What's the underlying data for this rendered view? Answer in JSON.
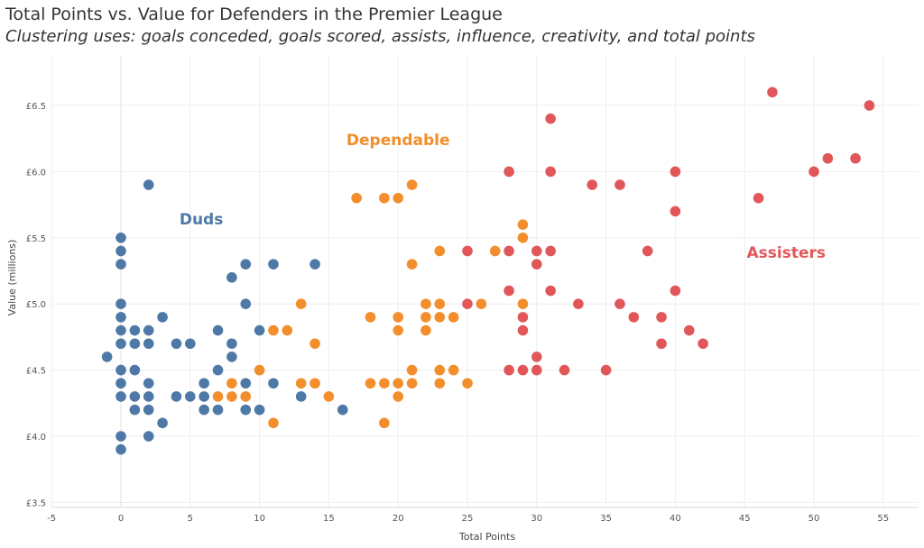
{
  "title": "Total Points vs. Value for Defenders in the Premier League",
  "subtitle": "Clustering uses: goals conceded, goals scored, assists, influence, creativity, and total points",
  "chart_data": {
    "type": "scatter",
    "xlabel": "Total Points",
    "ylabel": "Value (millions)",
    "xlim": [
      -5,
      57
    ],
    "ylim": [
      3.45,
      6.9
    ],
    "x_ticks": [
      -5,
      0,
      5,
      10,
      15,
      20,
      25,
      30,
      35,
      40,
      45,
      50,
      55
    ],
    "y_ticks": [
      3.5,
      4.0,
      4.5,
      5.0,
      5.5,
      6.0,
      6.5
    ],
    "y_tick_labels": [
      "£3.5",
      "£4.0",
      "£4.5",
      "£5.0",
      "£5.5",
      "£6.0",
      "£6.5"
    ],
    "grid": true,
    "series": [
      {
        "name": "Duds",
        "color": "#4e79a7",
        "label_at": [
          5.8,
          5.6
        ],
        "points": [
          [
            -1,
            4.6
          ],
          [
            0,
            3.9
          ],
          [
            0,
            4.0
          ],
          [
            0,
            4.3
          ],
          [
            0,
            4.4
          ],
          [
            0,
            4.5
          ],
          [
            0,
            4.7
          ],
          [
            0,
            4.8
          ],
          [
            0,
            4.9
          ],
          [
            0,
            5.0
          ],
          [
            0,
            5.3
          ],
          [
            0,
            5.4
          ],
          [
            0,
            5.5
          ],
          [
            1,
            4.2
          ],
          [
            1,
            4.3
          ],
          [
            1,
            4.5
          ],
          [
            1,
            4.7
          ],
          [
            1,
            4.8
          ],
          [
            2,
            4.0
          ],
          [
            2,
            4.2
          ],
          [
            2,
            4.3
          ],
          [
            2,
            4.4
          ],
          [
            2,
            4.7
          ],
          [
            2,
            4.8
          ],
          [
            2,
            5.9
          ],
          [
            3,
            4.1
          ],
          [
            3,
            4.9
          ],
          [
            4,
            4.3
          ],
          [
            4,
            4.7
          ],
          [
            5,
            4.3
          ],
          [
            5,
            4.7
          ],
          [
            6,
            4.2
          ],
          [
            6,
            4.3
          ],
          [
            6,
            4.4
          ],
          [
            7,
            4.2
          ],
          [
            7,
            4.5
          ],
          [
            7,
            4.8
          ],
          [
            8,
            4.6
          ],
          [
            8,
            4.7
          ],
          [
            8,
            5.2
          ],
          [
            9,
            4.2
          ],
          [
            9,
            4.4
          ],
          [
            9,
            5.0
          ],
          [
            9,
            5.3
          ],
          [
            10,
            4.2
          ],
          [
            10,
            4.8
          ],
          [
            11,
            4.4
          ],
          [
            11,
            5.3
          ],
          [
            13,
            4.3
          ],
          [
            14,
            5.3
          ],
          [
            16,
            4.2
          ]
        ]
      },
      {
        "name": "Dependable",
        "color": "#f28e2b",
        "label_at": [
          20,
          6.2
        ],
        "points": [
          [
            7,
            4.3
          ],
          [
            8,
            4.3
          ],
          [
            8,
            4.4
          ],
          [
            9,
            4.3
          ],
          [
            10,
            4.5
          ],
          [
            11,
            4.1
          ],
          [
            11,
            4.8
          ],
          [
            12,
            4.8
          ],
          [
            13,
            4.4
          ],
          [
            13,
            5.0
          ],
          [
            14,
            4.4
          ],
          [
            14,
            4.7
          ],
          [
            15,
            4.3
          ],
          [
            17,
            5.8
          ],
          [
            18,
            4.4
          ],
          [
            18,
            4.9
          ],
          [
            19,
            4.1
          ],
          [
            19,
            4.4
          ],
          [
            19,
            5.8
          ],
          [
            20,
            4.3
          ],
          [
            20,
            4.4
          ],
          [
            20,
            4.8
          ],
          [
            20,
            4.9
          ],
          [
            20,
            5.8
          ],
          [
            21,
            4.4
          ],
          [
            21,
            4.5
          ],
          [
            21,
            5.3
          ],
          [
            21,
            5.9
          ],
          [
            22,
            4.8
          ],
          [
            22,
            4.9
          ],
          [
            22,
            5.0
          ],
          [
            23,
            4.4
          ],
          [
            23,
            4.5
          ],
          [
            23,
            4.9
          ],
          [
            23,
            5.0
          ],
          [
            23,
            5.4
          ],
          [
            24,
            4.5
          ],
          [
            24,
            4.9
          ],
          [
            25,
            4.4
          ],
          [
            26,
            5.0
          ],
          [
            27,
            5.4
          ],
          [
            29,
            5.0
          ],
          [
            29,
            5.5
          ],
          [
            29,
            5.6
          ]
        ]
      },
      {
        "name": "Assisters",
        "color": "#e15759",
        "label_at": [
          48,
          5.35
        ],
        "points": [
          [
            25,
            5.0
          ],
          [
            25,
            5.4
          ],
          [
            28,
            4.5
          ],
          [
            28,
            5.1
          ],
          [
            28,
            5.4
          ],
          [
            28,
            6.0
          ],
          [
            29,
            4.5
          ],
          [
            29,
            4.8
          ],
          [
            29,
            4.9
          ],
          [
            30,
            4.5
          ],
          [
            30,
            4.6
          ],
          [
            30,
            5.3
          ],
          [
            30,
            5.4
          ],
          [
            31,
            5.1
          ],
          [
            31,
            5.4
          ],
          [
            31,
            6.0
          ],
          [
            31,
            6.4
          ],
          [
            32,
            4.5
          ],
          [
            33,
            5.0
          ],
          [
            34,
            5.9
          ],
          [
            35,
            4.5
          ],
          [
            36,
            5.0
          ],
          [
            36,
            5.9
          ],
          [
            37,
            4.9
          ],
          [
            38,
            5.4
          ],
          [
            39,
            4.7
          ],
          [
            39,
            4.9
          ],
          [
            40,
            5.1
          ],
          [
            40,
            5.7
          ],
          [
            40,
            6.0
          ],
          [
            41,
            4.8
          ],
          [
            42,
            4.7
          ],
          [
            46,
            5.8
          ],
          [
            47,
            6.6
          ],
          [
            50,
            6.0
          ],
          [
            51,
            6.1
          ],
          [
            53,
            6.1
          ],
          [
            54,
            6.5
          ]
        ]
      }
    ]
  }
}
